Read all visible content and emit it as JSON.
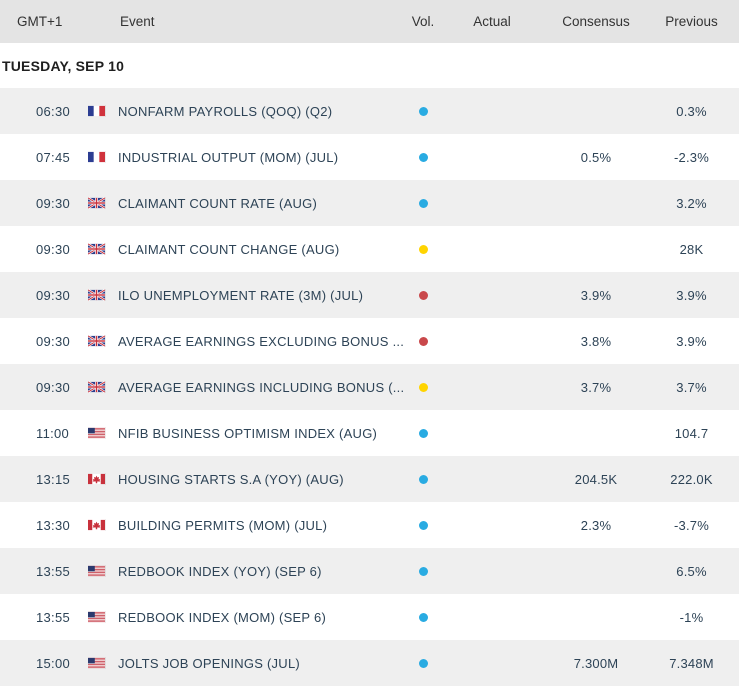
{
  "header": {
    "columns": [
      "GMT+1",
      "Event",
      "Vol.",
      "Actual",
      "Consensus",
      "Previous"
    ]
  },
  "date_heading": "TUESDAY, SEP 10",
  "colors": {
    "header_bg": "#e4e4e4",
    "row_bg": "#ffffff",
    "row_alt_bg": "#efefef",
    "text": "#2d4356",
    "header_text": "#333333",
    "vol_blue": "#29abe2",
    "vol_yellow": "#ffd400",
    "vol_red": "#c9484b"
  },
  "volatility_colors": {
    "blue": "#29abe2",
    "yellow": "#ffd400",
    "red": "#c9484b"
  },
  "rows": [
    {
      "time": "06:30",
      "country": "france",
      "event": "NONFARM PAYROLLS (QOQ) (Q2)",
      "vol": "blue",
      "actual": "",
      "consensus": "",
      "previous": "0.3%"
    },
    {
      "time": "07:45",
      "country": "france",
      "event": "INDUSTRIAL OUTPUT (MOM) (JUL)",
      "vol": "blue",
      "actual": "",
      "consensus": "0.5%",
      "previous": "-2.3%"
    },
    {
      "time": "09:30",
      "country": "uk",
      "event": "CLAIMANT COUNT RATE (AUG)",
      "vol": "blue",
      "actual": "",
      "consensus": "",
      "previous": "3.2%"
    },
    {
      "time": "09:30",
      "country": "uk",
      "event": "CLAIMANT COUNT CHANGE (AUG)",
      "vol": "yellow",
      "actual": "",
      "consensus": "",
      "previous": "28K"
    },
    {
      "time": "09:30",
      "country": "uk",
      "event": "ILO UNEMPLOYMENT RATE (3M) (JUL)",
      "vol": "red",
      "actual": "",
      "consensus": "3.9%",
      "previous": "3.9%"
    },
    {
      "time": "09:30",
      "country": "uk",
      "event": "AVERAGE EARNINGS EXCLUDING BONUS ...",
      "vol": "red",
      "actual": "",
      "consensus": "3.8%",
      "previous": "3.9%"
    },
    {
      "time": "09:30",
      "country": "uk",
      "event": "AVERAGE EARNINGS INCLUDING BONUS (...",
      "vol": "yellow",
      "actual": "",
      "consensus": "3.7%",
      "previous": "3.7%"
    },
    {
      "time": "11:00",
      "country": "usa",
      "event": "NFIB BUSINESS OPTIMISM INDEX (AUG)",
      "vol": "blue",
      "actual": "",
      "consensus": "",
      "previous": "104.7"
    },
    {
      "time": "13:15",
      "country": "canada",
      "event": "HOUSING STARTS S.A (YOY) (AUG)",
      "vol": "blue",
      "actual": "",
      "consensus": "204.5K",
      "previous": "222.0K"
    },
    {
      "time": "13:30",
      "country": "canada",
      "event": "BUILDING PERMITS (MOM) (JUL)",
      "vol": "blue",
      "actual": "",
      "consensus": "2.3%",
      "previous": "-3.7%"
    },
    {
      "time": "13:55",
      "country": "usa",
      "event": "REDBOOK INDEX (YOY) (SEP 6)",
      "vol": "blue",
      "actual": "",
      "consensus": "",
      "previous": "6.5%"
    },
    {
      "time": "13:55",
      "country": "usa",
      "event": "REDBOOK INDEX (MOM) (SEP 6)",
      "vol": "blue",
      "actual": "",
      "consensus": "",
      "previous": "-1%"
    },
    {
      "time": "15:00",
      "country": "usa",
      "event": "JOLTS JOB OPENINGS (JUL)",
      "vol": "blue",
      "actual": "",
      "consensus": "7.300M",
      "previous": "7.348M"
    }
  ]
}
